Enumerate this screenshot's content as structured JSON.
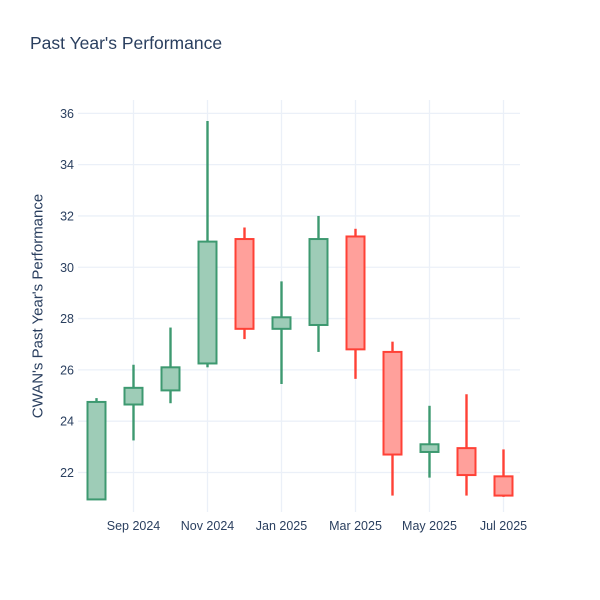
{
  "chart_data": {
    "type": "candlestick",
    "title": "Past Year's Performance",
    "xlabel": "",
    "ylabel": "CWAN's Past Year's Performance",
    "x_tick_labels": [
      "Sep 2024",
      "Nov 2024",
      "Jan 2025",
      "Mar 2025",
      "May 2025",
      "Jul 2025"
    ],
    "x_tick_indices": [
      1,
      3,
      5,
      7,
      9,
      11
    ],
    "y_ticks": [
      22,
      24,
      26,
      28,
      30,
      32,
      34,
      36
    ],
    "ylim": [
      20.46,
      36.52
    ],
    "grid": true,
    "legend": false,
    "candles": [
      {
        "month": "Aug 2024",
        "open": 20.95,
        "high": 24.9,
        "low": 20.95,
        "close": 24.75
      },
      {
        "month": "Sep 2024",
        "open": 24.65,
        "high": 26.2,
        "low": 23.25,
        "close": 25.3
      },
      {
        "month": "Oct 2024",
        "open": 25.2,
        "high": 27.65,
        "low": 24.7,
        "close": 26.1
      },
      {
        "month": "Nov 2024",
        "open": 26.25,
        "high": 35.7,
        "low": 26.1,
        "close": 31.0
      },
      {
        "month": "Dec 2024",
        "open": 31.1,
        "high": 31.55,
        "low": 27.2,
        "close": 27.6
      },
      {
        "month": "Jan 2025",
        "open": 27.6,
        "high": 29.45,
        "low": 25.45,
        "close": 28.05
      },
      {
        "month": "Feb 2025",
        "open": 27.75,
        "high": 32.0,
        "low": 26.7,
        "close": 31.1
      },
      {
        "month": "Mar 2025",
        "open": 31.2,
        "high": 31.5,
        "low": 25.65,
        "close": 26.8
      },
      {
        "month": "Apr 2025",
        "open": 26.7,
        "high": 27.1,
        "low": 21.1,
        "close": 22.7
      },
      {
        "month": "May 2025",
        "open": 22.8,
        "high": 24.6,
        "low": 21.8,
        "close": 23.1
      },
      {
        "month": "Jun 2025",
        "open": 22.95,
        "high": 25.05,
        "low": 21.1,
        "close": 21.9
      },
      {
        "month": "Jul 2025",
        "open": 21.85,
        "high": 22.9,
        "low": 21.05,
        "close": 21.1
      }
    ],
    "colors": {
      "increasing_line": "#3D9970",
      "increasing_fill": "#9ECCB7",
      "decreasing_line": "#FF4136",
      "decreasing_fill": "#FFA09B",
      "grid": "#EBF0F8",
      "text": "#2A3F5F",
      "background": "#FFFFFF"
    }
  }
}
